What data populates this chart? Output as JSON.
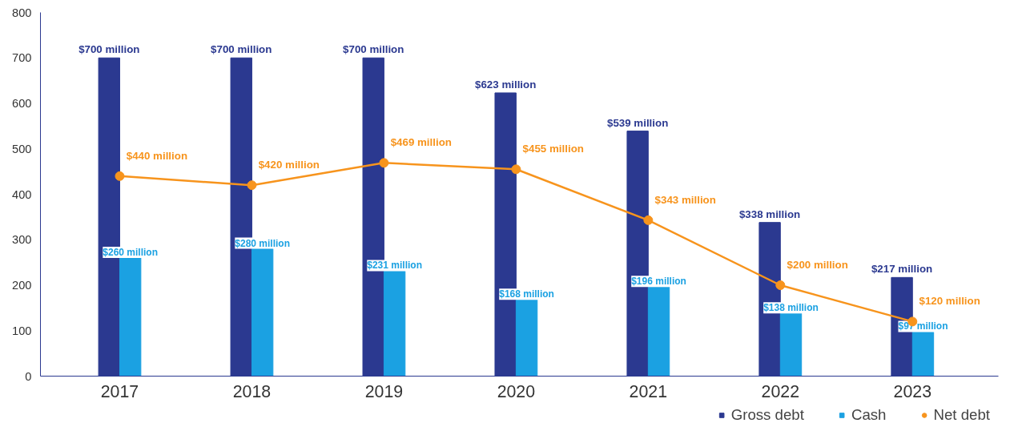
{
  "chart_data": {
    "type": "bar",
    "categories": [
      "2017",
      "2018",
      "2019",
      "2020",
      "2021",
      "2022",
      "2023"
    ],
    "ylim": [
      0,
      800
    ],
    "yticks": [
      0,
      100,
      200,
      300,
      400,
      500,
      600,
      700,
      800
    ],
    "grid": false,
    "legend": "bottom right",
    "series": [
      {
        "name": "Gross debt",
        "color": "#2b3990",
        "values": [
          700,
          700,
          700,
          623,
          539,
          338,
          217
        ],
        "value_labels": [
          "$700 million",
          "$700 million",
          "$700 million",
          "$623 million",
          "$539 million",
          "$338 million",
          "$217 million"
        ]
      },
      {
        "name": "Cash",
        "color": "#1ba1e2",
        "values": [
          260,
          280,
          231,
          168,
          196,
          138,
          97
        ],
        "value_labels": [
          "$260 million",
          "$280 million",
          "$231 million",
          "$168 million",
          "$196 million",
          "$138 million",
          "$97 million"
        ]
      },
      {
        "name": "Net debt",
        "type": "line",
        "marker": "circle",
        "color": "#f7941d",
        "values": [
          440,
          420,
          469,
          455,
          343,
          200,
          120
        ],
        "value_labels": [
          "$440 million",
          "$420 million",
          "$469 million",
          "$455 million",
          "$343 million",
          "$200 million",
          "$120 million"
        ]
      }
    ]
  }
}
